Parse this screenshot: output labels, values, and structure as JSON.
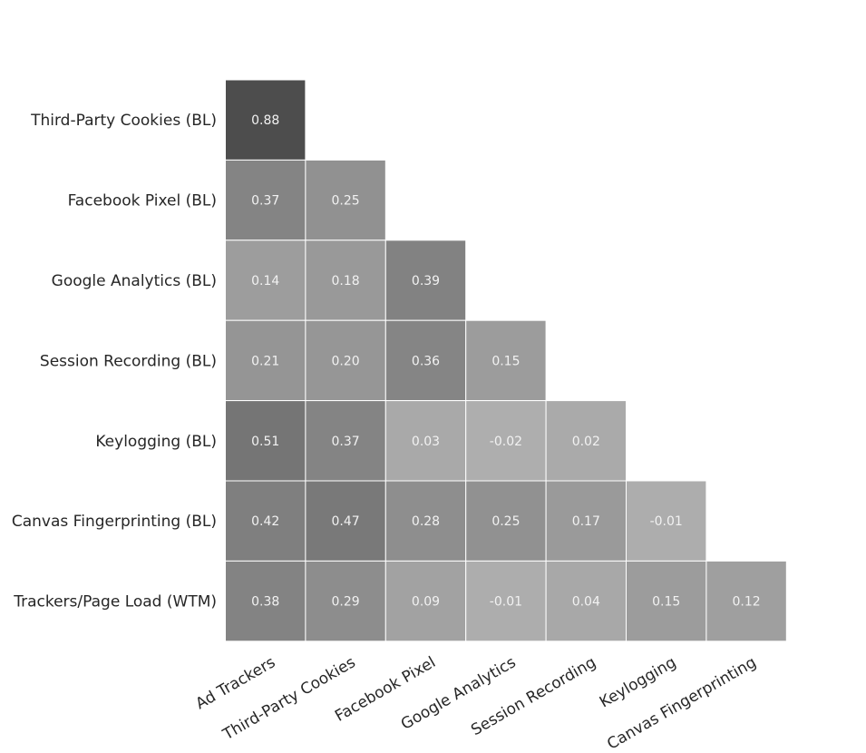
{
  "chart_data": {
    "type": "heatmap",
    "title": "",
    "xlabel": "",
    "ylabel": "",
    "columns": [
      "Ad Trackers",
      "Third-Party Cookies",
      "Facebook Pixel",
      "Google Analytics",
      "Session Recording",
      "Keylogging",
      "Canvas Fingerprinting"
    ],
    "rows": [
      "Third-Party Cookies (BL)",
      "Facebook Pixel (BL)",
      "Google Analytics (BL)",
      "Session Recording (BL)",
      "Keylogging (BL)",
      "Canvas Fingerprinting (BL)",
      "Trackers/Page Load (WTM)"
    ],
    "values": [
      [
        0.88,
        null,
        null,
        null,
        null,
        null,
        null
      ],
      [
        0.37,
        0.25,
        null,
        null,
        null,
        null,
        null
      ],
      [
        0.14,
        0.18,
        0.39,
        null,
        null,
        null,
        null
      ],
      [
        0.21,
        0.2,
        0.36,
        0.15,
        null,
        null,
        null
      ],
      [
        0.51,
        0.37,
        0.03,
        -0.02,
        0.02,
        null,
        null
      ],
      [
        0.42,
        0.47,
        0.28,
        0.25,
        0.17,
        -0.01,
        null
      ],
      [
        0.38,
        0.29,
        0.09,
        -0.01,
        0.04,
        0.15,
        0.12
      ]
    ],
    "value_format": "2 decimals",
    "colormap": "greys",
    "colors": {
      "cell_border": "#ffffff",
      "cell_text": "#f2f2f2",
      "tick_text": "#262626",
      "background": "#ffffff"
    },
    "grid": false,
    "legend": "none"
  }
}
